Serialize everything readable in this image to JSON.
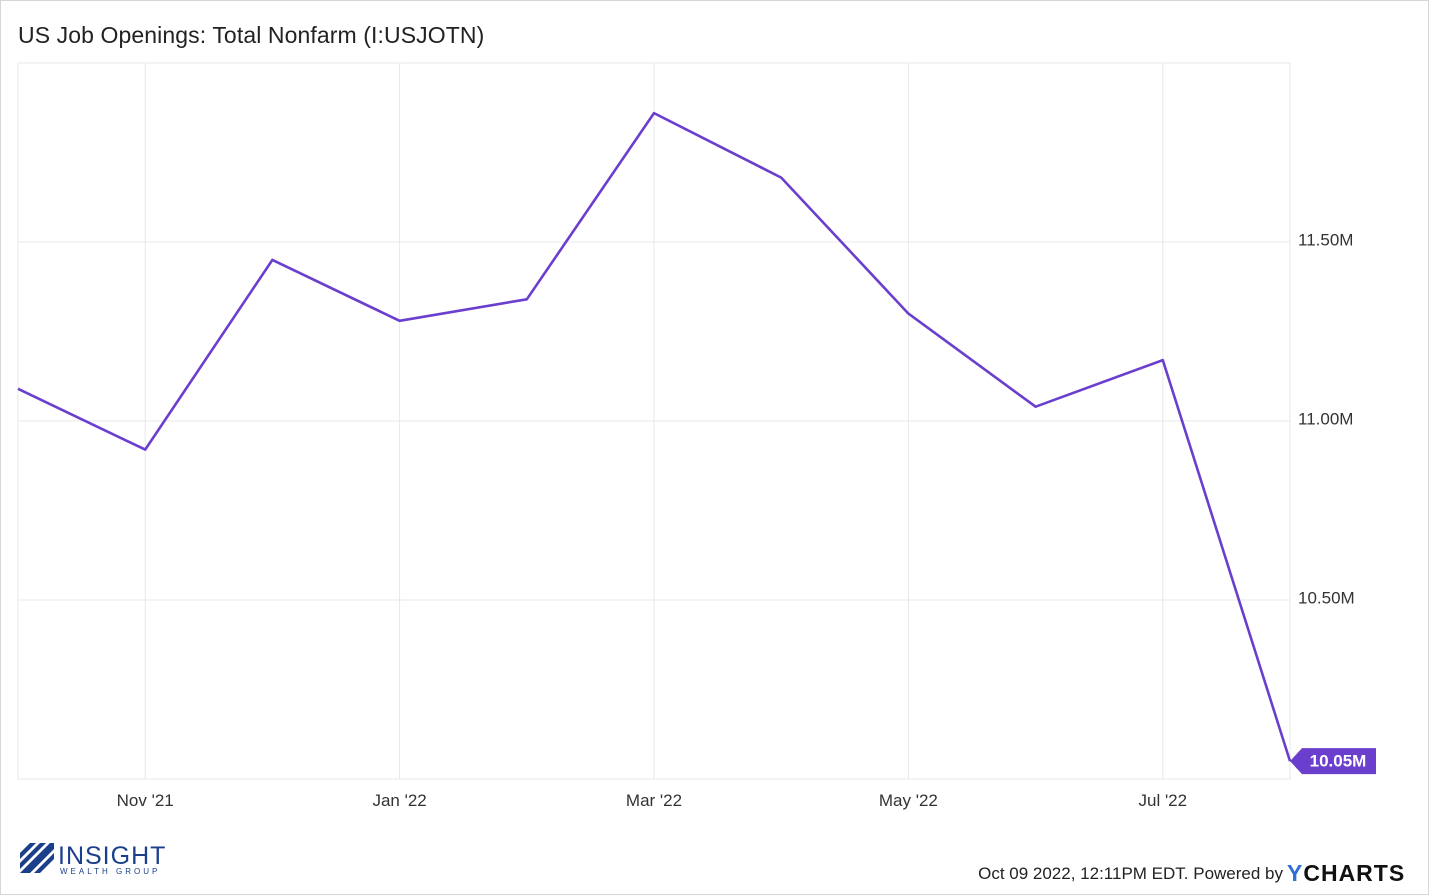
{
  "title": "US Job Openings: Total Nonfarm (I:USJOTN)",
  "footer": {
    "timestamp": "Oct 09 2022, 12:11PM EDT. Powered by ",
    "brand_y": "Y",
    "brand_rest": "CHARTS"
  },
  "logo": {
    "name": "INSIGHT",
    "sub": "WEALTH GROUP"
  },
  "colors": {
    "line": "#6a3fce",
    "grid": "#e8e8e8",
    "label_bg": "#6a3fce",
    "logo": "#1c3f8c"
  },
  "chart_data": {
    "type": "line",
    "title": "US Job Openings: Total Nonfarm (I:USJOTN)",
    "xlabel": "",
    "ylabel": "",
    "x": [
      "2021-10",
      "2021-11",
      "2021-12",
      "2022-01",
      "2022-02",
      "2022-03",
      "2022-04",
      "2022-05",
      "2022-06",
      "2022-07",
      "2022-08"
    ],
    "x_tick_labels": [
      "Nov '21",
      "Jan '22",
      "Mar '22",
      "May '22",
      "Jul '22"
    ],
    "x_tick_positions": [
      "2021-11",
      "2022-01",
      "2022-03",
      "2022-05",
      "2022-07"
    ],
    "series": [
      {
        "values": [
          11.09,
          10.92,
          11.45,
          11.28,
          11.34,
          11.86,
          11.68,
          11.3,
          11.04,
          11.17,
          10.05
        ]
      }
    ],
    "y_unit": "M",
    "y_ticks": [
      10.5,
      11.0,
      11.5
    ],
    "y_tick_labels": [
      "10.50M",
      "11.00M",
      "11.50M"
    ],
    "ylim": [
      10.0,
      12.0
    ],
    "last_value_label": "10.05M",
    "grid": true,
    "y_axis_position": "right"
  }
}
